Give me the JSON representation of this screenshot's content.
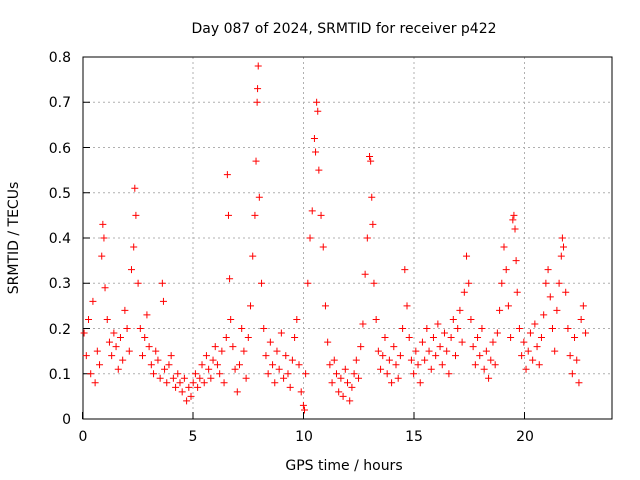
{
  "chart_data": {
    "type": "scatter",
    "title": "Day 087 of 2024, SRMTID for receiver p422",
    "xlabel": "GPS time / hours",
    "ylabel": "SRMTID / TECUs",
    "xlim": [
      0,
      24
    ],
    "ylim": [
      0,
      0.8
    ],
    "x_ticks": [
      "0",
      "5",
      "10",
      "15",
      "20"
    ],
    "y_ticks": [
      "0",
      "0.1",
      "0.2",
      "0.3",
      "0.4",
      "0.5",
      "0.6",
      "0.7",
      "0.8"
    ],
    "grid": true,
    "marker": "+",
    "color": "#ff0000",
    "series": [
      {
        "name": "SRMTID",
        "points": [
          [
            0.05,
            0.19
          ],
          [
            0.15,
            0.14
          ],
          [
            0.25,
            0.22
          ],
          [
            0.35,
            0.1
          ],
          [
            0.45,
            0.26
          ],
          [
            0.55,
            0.08
          ],
          [
            0.65,
            0.15
          ],
          [
            0.75,
            0.12
          ],
          [
            0.85,
            0.36
          ],
          [
            0.9,
            0.43
          ],
          [
            0.95,
            0.4
          ],
          [
            1.0,
            0.29
          ],
          [
            1.1,
            0.22
          ],
          [
            1.2,
            0.17
          ],
          [
            1.3,
            0.14
          ],
          [
            1.4,
            0.19
          ],
          [
            1.5,
            0.16
          ],
          [
            1.6,
            0.11
          ],
          [
            1.7,
            0.18
          ],
          [
            1.8,
            0.13
          ],
          [
            1.9,
            0.24
          ],
          [
            2.0,
            0.2
          ],
          [
            2.1,
            0.15
          ],
          [
            2.2,
            0.33
          ],
          [
            2.3,
            0.38
          ],
          [
            2.35,
            0.51
          ],
          [
            2.4,
            0.45
          ],
          [
            2.5,
            0.3
          ],
          [
            2.6,
            0.2
          ],
          [
            2.7,
            0.14
          ],
          [
            2.8,
            0.18
          ],
          [
            2.9,
            0.23
          ],
          [
            3.0,
            0.16
          ],
          [
            3.1,
            0.12
          ],
          [
            3.2,
            0.1
          ],
          [
            3.3,
            0.15
          ],
          [
            3.4,
            0.13
          ],
          [
            3.5,
            0.09
          ],
          [
            3.6,
            0.3
          ],
          [
            3.65,
            0.26
          ],
          [
            3.7,
            0.11
          ],
          [
            3.8,
            0.08
          ],
          [
            3.9,
            0.12
          ],
          [
            4.0,
            0.14
          ],
          [
            4.1,
            0.09
          ],
          [
            4.2,
            0.07
          ],
          [
            4.3,
            0.1
          ],
          [
            4.4,
            0.08
          ],
          [
            4.5,
            0.06
          ],
          [
            4.6,
            0.09
          ],
          [
            4.7,
            0.04
          ],
          [
            4.8,
            0.07
          ],
          [
            4.9,
            0.05
          ],
          [
            5.0,
            0.08
          ],
          [
            5.1,
            0.1
          ],
          [
            5.2,
            0.07
          ],
          [
            5.3,
            0.09
          ],
          [
            5.4,
            0.12
          ],
          [
            5.5,
            0.08
          ],
          [
            5.6,
            0.14
          ],
          [
            5.7,
            0.11
          ],
          [
            5.8,
            0.09
          ],
          [
            5.9,
            0.13
          ],
          [
            6.0,
            0.16
          ],
          [
            6.1,
            0.12
          ],
          [
            6.2,
            0.1
          ],
          [
            6.3,
            0.15
          ],
          [
            6.4,
            0.08
          ],
          [
            6.5,
            0.18
          ],
          [
            6.55,
            0.54
          ],
          [
            6.6,
            0.45
          ],
          [
            6.65,
            0.31
          ],
          [
            6.7,
            0.22
          ],
          [
            6.8,
            0.16
          ],
          [
            6.9,
            0.11
          ],
          [
            7.0,
            0.06
          ],
          [
            7.1,
            0.12
          ],
          [
            7.2,
            0.2
          ],
          [
            7.3,
            0.15
          ],
          [
            7.4,
            0.09
          ],
          [
            7.5,
            0.18
          ],
          [
            7.6,
            0.25
          ],
          [
            7.7,
            0.36
          ],
          [
            7.8,
            0.45
          ],
          [
            7.85,
            0.57
          ],
          [
            7.9,
            0.7
          ],
          [
            7.92,
            0.73
          ],
          [
            7.95,
            0.78
          ],
          [
            8.0,
            0.49
          ],
          [
            8.1,
            0.3
          ],
          [
            8.2,
            0.2
          ],
          [
            8.3,
            0.14
          ],
          [
            8.4,
            0.1
          ],
          [
            8.5,
            0.17
          ],
          [
            8.6,
            0.12
          ],
          [
            8.7,
            0.08
          ],
          [
            8.8,
            0.15
          ],
          [
            8.9,
            0.11
          ],
          [
            9.0,
            0.19
          ],
          [
            9.1,
            0.09
          ],
          [
            9.2,
            0.14
          ],
          [
            9.3,
            0.1
          ],
          [
            9.4,
            0.07
          ],
          [
            9.5,
            0.13
          ],
          [
            9.6,
            0.18
          ],
          [
            9.7,
            0.22
          ],
          [
            9.8,
            0.12
          ],
          [
            9.9,
            0.06
          ],
          [
            10.0,
            0.03
          ],
          [
            10.05,
            0.02
          ],
          [
            10.1,
            0.1
          ],
          [
            10.2,
            0.3
          ],
          [
            10.3,
            0.4
          ],
          [
            10.4,
            0.46
          ],
          [
            10.5,
            0.62
          ],
          [
            10.55,
            0.59
          ],
          [
            10.6,
            0.7
          ],
          [
            10.65,
            0.68
          ],
          [
            10.7,
            0.55
          ],
          [
            10.8,
            0.45
          ],
          [
            10.9,
            0.38
          ],
          [
            11.0,
            0.25
          ],
          [
            11.1,
            0.17
          ],
          [
            11.2,
            0.12
          ],
          [
            11.3,
            0.08
          ],
          [
            11.4,
            0.13
          ],
          [
            11.5,
            0.1
          ],
          [
            11.6,
            0.06
          ],
          [
            11.7,
            0.09
          ],
          [
            11.8,
            0.05
          ],
          [
            11.9,
            0.11
          ],
          [
            12.0,
            0.08
          ],
          [
            12.1,
            0.04
          ],
          [
            12.2,
            0.07
          ],
          [
            12.3,
            0.1
          ],
          [
            12.4,
            0.13
          ],
          [
            12.5,
            0.09
          ],
          [
            12.6,
            0.16
          ],
          [
            12.7,
            0.21
          ],
          [
            12.8,
            0.32
          ],
          [
            12.9,
            0.4
          ],
          [
            13.0,
            0.58
          ],
          [
            13.05,
            0.57
          ],
          [
            13.1,
            0.49
          ],
          [
            13.15,
            0.43
          ],
          [
            13.2,
            0.3
          ],
          [
            13.3,
            0.22
          ],
          [
            13.4,
            0.15
          ],
          [
            13.5,
            0.11
          ],
          [
            13.6,
            0.14
          ],
          [
            13.7,
            0.18
          ],
          [
            13.8,
            0.1
          ],
          [
            13.9,
            0.13
          ],
          [
            14.0,
            0.08
          ],
          [
            14.1,
            0.16
          ],
          [
            14.2,
            0.12
          ],
          [
            14.3,
            0.09
          ],
          [
            14.4,
            0.14
          ],
          [
            14.5,
            0.2
          ],
          [
            14.6,
            0.33
          ],
          [
            14.7,
            0.25
          ],
          [
            14.8,
            0.18
          ],
          [
            14.9,
            0.13
          ],
          [
            15.0,
            0.1
          ],
          [
            15.1,
            0.15
          ],
          [
            15.2,
            0.12
          ],
          [
            15.3,
            0.08
          ],
          [
            15.4,
            0.17
          ],
          [
            15.5,
            0.13
          ],
          [
            15.6,
            0.2
          ],
          [
            15.7,
            0.15
          ],
          [
            15.8,
            0.11
          ],
          [
            15.9,
            0.18
          ],
          [
            16.0,
            0.14
          ],
          [
            16.1,
            0.21
          ],
          [
            16.2,
            0.16
          ],
          [
            16.3,
            0.12
          ],
          [
            16.4,
            0.19
          ],
          [
            16.5,
            0.15
          ],
          [
            16.6,
            0.1
          ],
          [
            16.7,
            0.18
          ],
          [
            16.8,
            0.22
          ],
          [
            16.9,
            0.14
          ],
          [
            17.0,
            0.2
          ],
          [
            17.1,
            0.24
          ],
          [
            17.2,
            0.17
          ],
          [
            17.3,
            0.28
          ],
          [
            17.4,
            0.36
          ],
          [
            17.5,
            0.3
          ],
          [
            17.6,
            0.22
          ],
          [
            17.7,
            0.16
          ],
          [
            17.8,
            0.12
          ],
          [
            17.9,
            0.18
          ],
          [
            18.0,
            0.14
          ],
          [
            18.1,
            0.2
          ],
          [
            18.2,
            0.11
          ],
          [
            18.3,
            0.15
          ],
          [
            18.4,
            0.09
          ],
          [
            18.5,
            0.13
          ],
          [
            18.6,
            0.17
          ],
          [
            18.7,
            0.12
          ],
          [
            18.8,
            0.19
          ],
          [
            18.9,
            0.24
          ],
          [
            19.0,
            0.3
          ],
          [
            19.1,
            0.38
          ],
          [
            19.2,
            0.33
          ],
          [
            19.3,
            0.25
          ],
          [
            19.4,
            0.18
          ],
          [
            19.5,
            0.44
          ],
          [
            19.55,
            0.45
          ],
          [
            19.6,
            0.42
          ],
          [
            19.65,
            0.35
          ],
          [
            19.7,
            0.28
          ],
          [
            19.8,
            0.2
          ],
          [
            19.9,
            0.14
          ],
          [
            20.0,
            0.17
          ],
          [
            20.1,
            0.11
          ],
          [
            20.2,
            0.15
          ],
          [
            20.3,
            0.19
          ],
          [
            20.4,
            0.13
          ],
          [
            20.5,
            0.21
          ],
          [
            20.6,
            0.16
          ],
          [
            20.7,
            0.12
          ],
          [
            20.8,
            0.18
          ],
          [
            20.9,
            0.23
          ],
          [
            21.0,
            0.3
          ],
          [
            21.1,
            0.33
          ],
          [
            21.2,
            0.27
          ],
          [
            21.3,
            0.2
          ],
          [
            21.4,
            0.15
          ],
          [
            21.5,
            0.24
          ],
          [
            21.6,
            0.3
          ],
          [
            21.7,
            0.36
          ],
          [
            21.75,
            0.4
          ],
          [
            21.8,
            0.38
          ],
          [
            21.9,
            0.28
          ],
          [
            22.0,
            0.2
          ],
          [
            22.1,
            0.14
          ],
          [
            22.2,
            0.1
          ],
          [
            22.3,
            0.18
          ],
          [
            22.4,
            0.13
          ],
          [
            22.5,
            0.08
          ],
          [
            22.6,
            0.22
          ],
          [
            22.7,
            0.25
          ],
          [
            22.8,
            0.19
          ]
        ]
      }
    ]
  }
}
